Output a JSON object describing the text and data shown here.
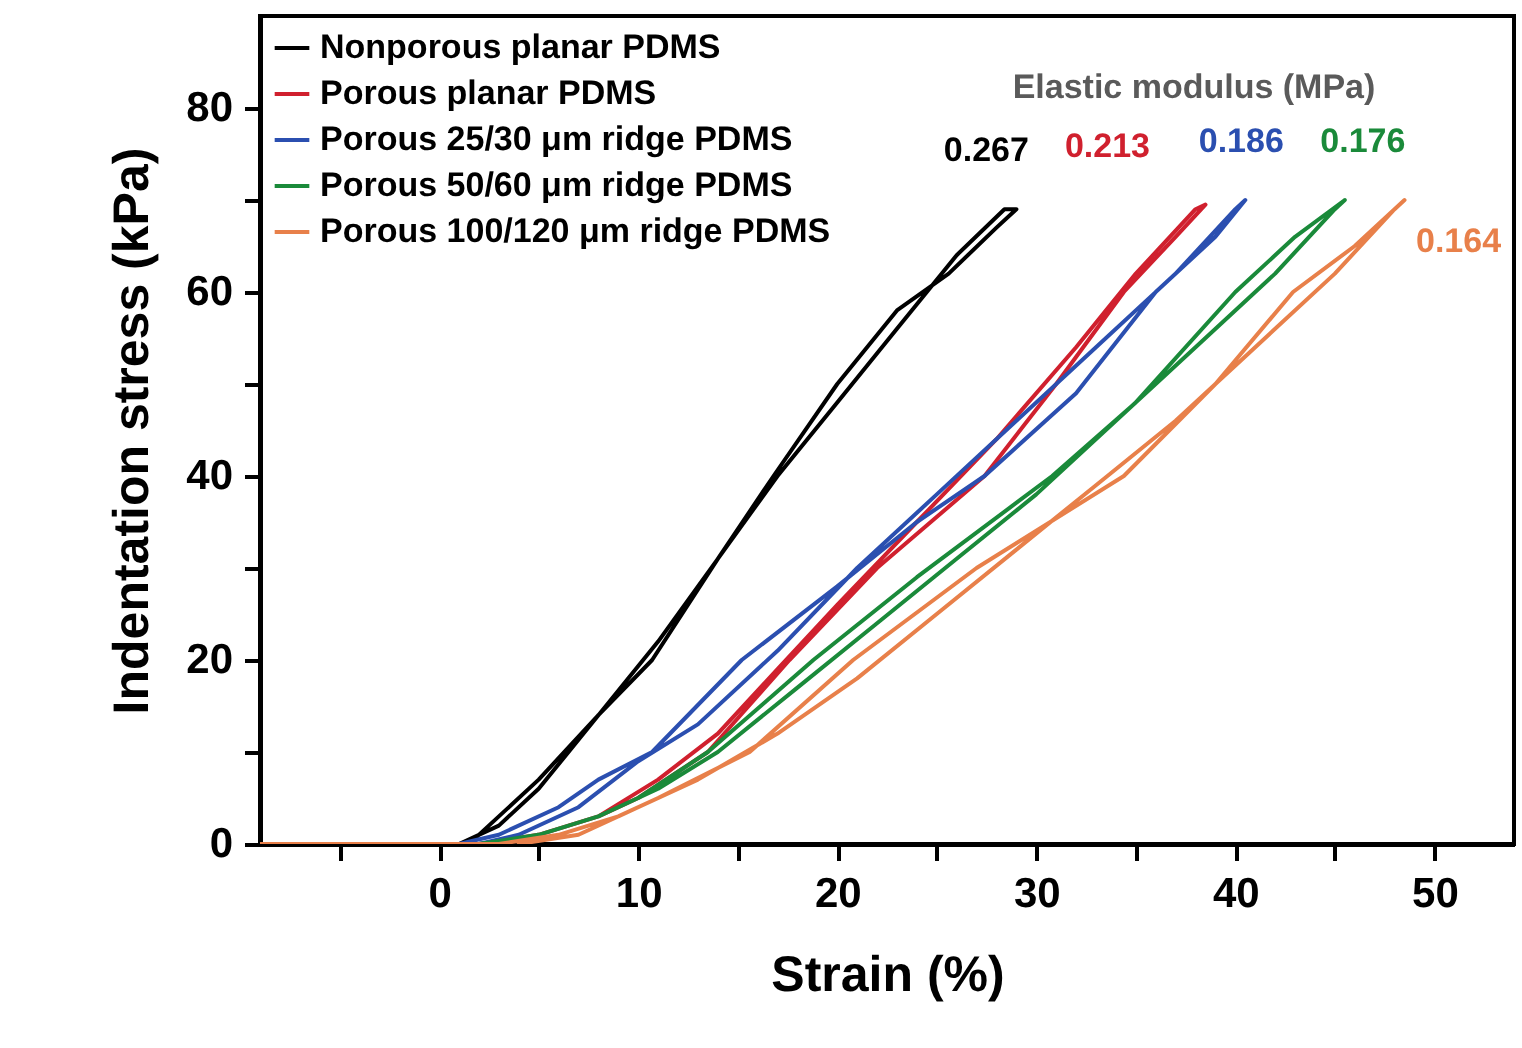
{
  "chart_data": {
    "type": "line",
    "xlabel": "Strain (%)",
    "ylabel": "Indentation stress (kPa)",
    "xlim": [
      -9,
      54
    ],
    "ylim": [
      0,
      90
    ],
    "xticks": [
      {
        "value": -5,
        "label": null
      },
      0,
      {
        "value": 5,
        "label": null
      },
      10,
      {
        "value": 15,
        "label": null
      },
      20,
      {
        "value": 25,
        "label": null
      },
      30,
      {
        "value": 35,
        "label": null
      },
      40,
      {
        "value": 45,
        "label": null
      },
      50
    ],
    "yticks": [
      0,
      {
        "value": 10,
        "label": null
      },
      20,
      {
        "value": 30,
        "label": null
      },
      40,
      {
        "value": 50,
        "label": null
      },
      60,
      {
        "value": 70,
        "label": null
      },
      80
    ],
    "grid": false,
    "legend": "top left",
    "marker": "none",
    "line_style": "solid",
    "series": [
      {
        "name": "Nonporous planar PDMS",
        "color": "#000000",
        "x": [
          -9,
          1,
          3,
          5,
          8,
          10.7,
          14,
          16.8,
          20,
          23,
          25.6,
          28,
          29,
          28.4,
          26,
          23,
          20,
          17,
          14,
          11,
          8,
          5,
          3,
          1.5
        ],
        "values": [
          0,
          0,
          2,
          6,
          14,
          20,
          31,
          40,
          50,
          58,
          62,
          67,
          69,
          69,
          64,
          56,
          48,
          40,
          31,
          22,
          14,
          7,
          3,
          0
        ]
      },
      {
        "name": "Porous planar PDMS",
        "color": "#d0202e",
        "x": [
          -9,
          2,
          5,
          8,
          10,
          13.5,
          17.6,
          22,
          27.4,
          31,
          34.4,
          37,
          38.5,
          38,
          35,
          32,
          28,
          24,
          20,
          17,
          14,
          11,
          8,
          5,
          3
        ],
        "values": [
          0,
          0,
          1,
          3,
          5,
          10,
          20,
          30,
          40,
          50,
          60,
          66,
          69.5,
          69,
          62,
          54,
          44,
          35,
          26,
          19,
          12,
          7,
          3,
          1,
          0
        ]
      },
      {
        "name": "Porous 25/30 μm ridge PDMS",
        "color": "#2b4fb0",
        "x": [
          -9,
          1,
          3,
          6,
          8,
          10.7,
          15.2,
          20,
          24,
          27.4,
          32,
          36,
          39,
          40.5,
          40,
          37,
          33,
          29,
          25,
          21,
          17,
          13,
          10,
          7,
          4,
          2
        ],
        "values": [
          0,
          0,
          1,
          4,
          7,
          10,
          20,
          28,
          35,
          40,
          49,
          60,
          66,
          70,
          69,
          62,
          54,
          46,
          38,
          30,
          21,
          13,
          9,
          4,
          1,
          0
        ]
      },
      {
        "name": "Porous 50/60 μm ridge PDMS",
        "color": "#1a8a3a",
        "x": [
          -9,
          2,
          5,
          8,
          10,
          13.5,
          18.8,
          24,
          30.8,
          35,
          40,
          43,
          45.5,
          45,
          42,
          38,
          34,
          30,
          26,
          22,
          18,
          14,
          11,
          8,
          5,
          3
        ],
        "values": [
          0,
          0,
          1,
          3,
          5,
          10,
          20,
          29,
          40,
          48,
          60,
          66,
          70,
          69,
          62,
          54,
          46,
          38,
          31,
          24,
          17,
          10,
          6,
          3,
          1,
          0
        ]
      },
      {
        "name": "Porous 100/120 μm ridge PDMS",
        "color": "#e8804a",
        "x": [
          -9,
          3,
          6,
          9,
          11,
          15.6,
          20.8,
          27,
          34.4,
          39,
          42.9,
          46,
          48.5,
          48,
          45,
          41,
          37,
          33,
          29,
          25,
          21,
          17,
          13,
          10,
          7,
          4
        ],
        "values": [
          0,
          0,
          1,
          3,
          5,
          10,
          20,
          30,
          40,
          50,
          60,
          65,
          70,
          69,
          62,
          54,
          46,
          39,
          32,
          25,
          18,
          12,
          7,
          4,
          1,
          0
        ]
      }
    ],
    "annotations": [
      "Elastic modulus (MPa)",
      {
        "text": "0.267",
        "x": 29,
        "y": 69
      },
      {
        "text": "0.213",
        "x": 38.5,
        "y": 69.5
      },
      {
        "text": "0.186",
        "x": 40.5,
        "y": 70
      },
      {
        "text": "0.176",
        "x": 45.5,
        "y": 70
      },
      {
        "text": "0.164",
        "x": 48.5,
        "y": 70
      }
    ]
  }
}
